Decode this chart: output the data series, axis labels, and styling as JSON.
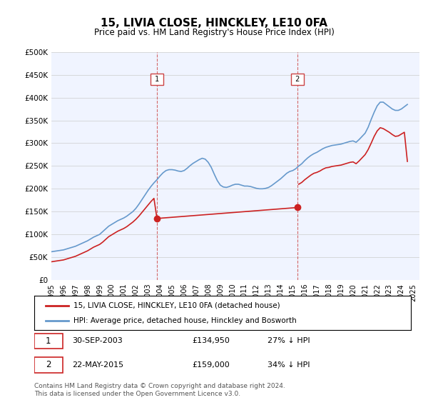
{
  "title": "15, LIVIA CLOSE, HINCKLEY, LE10 0FA",
  "subtitle": "Price paid vs. HM Land Registry's House Price Index (HPI)",
  "ylabel_ticks": [
    "£0",
    "£50K",
    "£100K",
    "£150K",
    "£200K",
    "£250K",
    "£300K",
    "£350K",
    "£400K",
    "£450K",
    "£500K"
  ],
  "ylim": [
    0,
    500000
  ],
  "xlim_start": 1995.0,
  "xlim_end": 2025.5,
  "sale1_date": 2003.75,
  "sale1_price": 134950,
  "sale1_label": "1",
  "sale2_date": 2015.4,
  "sale2_price": 159000,
  "sale2_label": "2",
  "sale1_info": "30-SEP-2003    £134,950    27% ↓ HPI",
  "sale2_info": "22-MAY-2015    £159,000    34% ↓ HPI",
  "legend_line1": "15, LIVIA CLOSE, HINCKLEY, LE10 0FA (detached house)",
  "legend_line2": "HPI: Average price, detached house, Hinckley and Bosworth",
  "footer": "Contains HM Land Registry data © Crown copyright and database right 2024.\nThis data is licensed under the Open Government Licence v3.0.",
  "hpi_color": "#6699cc",
  "sale_color": "#cc2222",
  "vline_color": "#cc4444",
  "background_color": "#ffffff",
  "plot_bg_color": "#f0f4ff",
  "grid_color": "#cccccc",
  "hpi_data_x": [
    1995.0,
    1995.25,
    1995.5,
    1995.75,
    1996.0,
    1996.25,
    1996.5,
    1996.75,
    1997.0,
    1997.25,
    1997.5,
    1997.75,
    1998.0,
    1998.25,
    1998.5,
    1998.75,
    1999.0,
    1999.25,
    1999.5,
    1999.75,
    2000.0,
    2000.25,
    2000.5,
    2000.75,
    2001.0,
    2001.25,
    2001.5,
    2001.75,
    2002.0,
    2002.25,
    2002.5,
    2002.75,
    2003.0,
    2003.25,
    2003.5,
    2003.75,
    2004.0,
    2004.25,
    2004.5,
    2004.75,
    2005.0,
    2005.25,
    2005.5,
    2005.75,
    2006.0,
    2006.25,
    2006.5,
    2006.75,
    2007.0,
    2007.25,
    2007.5,
    2007.75,
    2008.0,
    2008.25,
    2008.5,
    2008.75,
    2009.0,
    2009.25,
    2009.5,
    2009.75,
    2010.0,
    2010.25,
    2010.5,
    2010.75,
    2011.0,
    2011.25,
    2011.5,
    2011.75,
    2012.0,
    2012.25,
    2012.5,
    2012.75,
    2013.0,
    2013.25,
    2013.5,
    2013.75,
    2014.0,
    2014.25,
    2014.5,
    2014.75,
    2015.0,
    2015.25,
    2015.5,
    2015.75,
    2016.0,
    2016.25,
    2016.5,
    2016.75,
    2017.0,
    2017.25,
    2017.5,
    2017.75,
    2018.0,
    2018.25,
    2018.5,
    2018.75,
    2019.0,
    2019.25,
    2019.5,
    2019.75,
    2020.0,
    2020.25,
    2020.5,
    2020.75,
    2021.0,
    2021.25,
    2021.5,
    2021.75,
    2022.0,
    2022.25,
    2022.5,
    2022.75,
    2023.0,
    2023.25,
    2023.5,
    2023.75,
    2024.0,
    2024.25,
    2024.5
  ],
  "hpi_data_y": [
    62000,
    63000,
    64000,
    65000,
    66000,
    68000,
    70000,
    72000,
    74000,
    77000,
    80000,
    83000,
    86000,
    90000,
    94000,
    97000,
    100000,
    106000,
    112000,
    118000,
    122000,
    126000,
    130000,
    133000,
    136000,
    140000,
    145000,
    150000,
    157000,
    166000,
    176000,
    186000,
    196000,
    205000,
    213000,
    220000,
    228000,
    235000,
    240000,
    242000,
    242000,
    241000,
    239000,
    238000,
    240000,
    245000,
    251000,
    256000,
    260000,
    264000,
    267000,
    265000,
    258000,
    247000,
    232000,
    218000,
    208000,
    204000,
    203000,
    205000,
    208000,
    210000,
    210000,
    208000,
    206000,
    206000,
    205000,
    203000,
    201000,
    200000,
    200000,
    201000,
    203000,
    207000,
    212000,
    217000,
    222000,
    228000,
    234000,
    238000,
    240000,
    244000,
    250000,
    255000,
    262000,
    268000,
    273000,
    277000,
    280000,
    284000,
    288000,
    291000,
    293000,
    295000,
    296000,
    297000,
    298000,
    300000,
    302000,
    304000,
    305000,
    302000,
    308000,
    315000,
    322000,
    335000,
    352000,
    368000,
    382000,
    390000,
    390000,
    385000,
    380000,
    375000,
    372000,
    372000,
    375000,
    380000,
    385000
  ],
  "sale_data_x": [
    1995.0,
    1995.25,
    1995.5,
    1995.75,
    1996.0,
    1996.25,
    1996.5,
    1996.75,
    1997.0,
    1997.25,
    1997.5,
    1997.75,
    1998.0,
    1998.25,
    1998.5,
    1998.75,
    1999.0,
    1999.25,
    1999.5,
    1999.75,
    2000.0,
    2000.25,
    2000.5,
    2000.75,
    2001.0,
    2001.25,
    2001.5,
    2001.75,
    2002.0,
    2002.25,
    2002.5,
    2002.75,
    2003.0,
    2003.25,
    2003.5,
    2003.75,
    2015.4,
    2015.5,
    2015.75,
    2016.0,
    2016.25,
    2016.5,
    2016.75,
    2017.0,
    2017.25,
    2017.5,
    2017.75,
    2018.0,
    2018.25,
    2018.5,
    2018.75,
    2019.0,
    2019.25,
    2019.5,
    2019.75,
    2020.0,
    2020.25,
    2020.5,
    2020.75,
    2021.0,
    2021.25,
    2021.5,
    2021.75,
    2022.0,
    2022.25,
    2022.5,
    2022.75,
    2023.0,
    2023.25,
    2023.5,
    2023.75,
    2024.0,
    2024.25,
    2024.5
  ],
  "sale_data_y": [
    40000,
    41000,
    42000,
    43000,
    44000,
    46000,
    48000,
    50000,
    52000,
    55000,
    58000,
    61000,
    64000,
    68000,
    72000,
    75000,
    78000,
    83000,
    89000,
    95000,
    99000,
    103000,
    107000,
    110000,
    113000,
    117000,
    122000,
    127000,
    133000,
    140000,
    148000,
    156000,
    164000,
    172000,
    179000,
    134950,
    159000,
    210000,
    214000,
    220000,
    225000,
    230000,
    234000,
    236000,
    239000,
    243000,
    246000,
    247000,
    249000,
    250000,
    251000,
    252000,
    254000,
    256000,
    258000,
    259000,
    255000,
    261000,
    268000,
    275000,
    286000,
    300000,
    315000,
    327000,
    334000,
    332000,
    328000,
    324000,
    319000,
    315000,
    316000,
    320000,
    324000,
    260000
  ]
}
